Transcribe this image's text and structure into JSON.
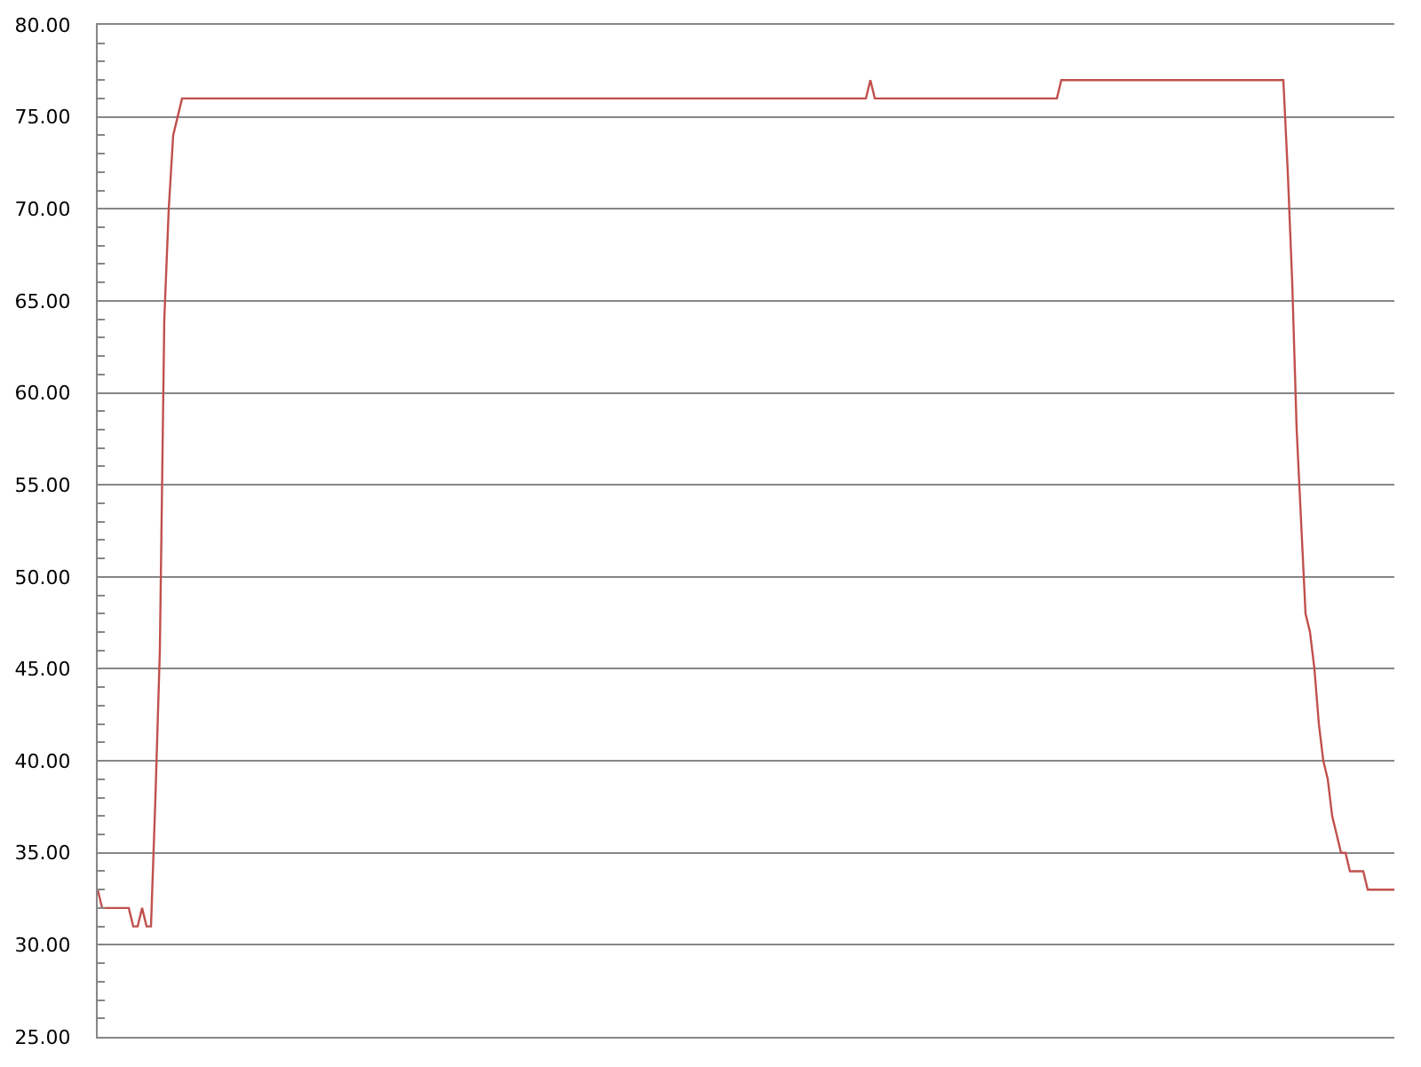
{
  "chart_data": {
    "type": "line",
    "categories": [
      null,
      null,
      null,
      null,
      null,
      null,
      null,
      null,
      null,
      null,
      null,
      null,
      null,
      null,
      null,
      null,
      null,
      null,
      null,
      null,
      null,
      null,
      null,
      null,
      null,
      null,
      null,
      null,
      null,
      null,
      null,
      null,
      null,
      null,
      null,
      null,
      null,
      null,
      null,
      null,
      null,
      null,
      null,
      null,
      null,
      null,
      null,
      null,
      null,
      null,
      null,
      null,
      null,
      null,
      null,
      null,
      null,
      null,
      null,
      null,
      null,
      null,
      null,
      null,
      null,
      null,
      null,
      null,
      null,
      null,
      null,
      null,
      null,
      null,
      null,
      null,
      null,
      null,
      null,
      null,
      null,
      null,
      null,
      null,
      null,
      null,
      null,
      null,
      null,
      null,
      null,
      null,
      null,
      null,
      null,
      null,
      null,
      null,
      null,
      null,
      null,
      null,
      null,
      null,
      null,
      null,
      null,
      null,
      null,
      null,
      null,
      null,
      null,
      null,
      null,
      null,
      null,
      null,
      null,
      null,
      null,
      null,
      null,
      null,
      null,
      null,
      null,
      null,
      null,
      null,
      null,
      null,
      null,
      null,
      null,
      null,
      null,
      null,
      null,
      null,
      null,
      null,
      null,
      null,
      null,
      null,
      null,
      null,
      null,
      null,
      null,
      null,
      null,
      null,
      null,
      null,
      null,
      null,
      null,
      null,
      null,
      null,
      null,
      null,
      null,
      null,
      null,
      null,
      null,
      null,
      null,
      null,
      null,
      null,
      null,
      null,
      null,
      null,
      null,
      null,
      null,
      null,
      null,
      null,
      null,
      null,
      null,
      null,
      null,
      null,
      null,
      null,
      null,
      null,
      null,
      null,
      null,
      null,
      null,
      null,
      null,
      null,
      null,
      null,
      null,
      null,
      null,
      null,
      null,
      null,
      null,
      null,
      null,
      null,
      null,
      null,
      null,
      null,
      null,
      null,
      null,
      null,
      null,
      null,
      null,
      null,
      null,
      null,
      null,
      null,
      null,
      null,
      null,
      null,
      null,
      null,
      null,
      null,
      null,
      null,
      null,
      null,
      null,
      null,
      null,
      null,
      null,
      null,
      null,
      null,
      null,
      null,
      null,
      null,
      null,
      null,
      null,
      null,
      null,
      null,
      null,
      null,
      null,
      null,
      null,
      null,
      null,
      null,
      null,
      null,
      null,
      null,
      null,
      null,
      null,
      null,
      null,
      null,
      null,
      null,
      null,
      null,
      null,
      null,
      null,
      null,
      null,
      null,
      null,
      null,
      null,
      null,
      null
    ],
    "series": [
      {
        "color": "#c0504d",
        "values": [
          33,
          32,
          32,
          32,
          32,
          32,
          32,
          32,
          31,
          31,
          32,
          31,
          31,
          38,
          46,
          64,
          70,
          74,
          75,
          76,
          76,
          76,
          76,
          76,
          76,
          76,
          76,
          76,
          76,
          76,
          76,
          76,
          76,
          76,
          76,
          76,
          76,
          76,
          76,
          76,
          76,
          76,
          76,
          76,
          76,
          76,
          76,
          76,
          76,
          76,
          76,
          76,
          76,
          76,
          76,
          76,
          76,
          76,
          76,
          76,
          76,
          76,
          76,
          76,
          76,
          76,
          76,
          76,
          76,
          76,
          76,
          76,
          76,
          76,
          76,
          76,
          76,
          76,
          76,
          76,
          76,
          76,
          76,
          76,
          76,
          76,
          76,
          76,
          76,
          76,
          76,
          76,
          76,
          76,
          76,
          76,
          76,
          76,
          76,
          76,
          76,
          76,
          76,
          76,
          76,
          76,
          76,
          76,
          76,
          76,
          76,
          76,
          76,
          76,
          76,
          76,
          76,
          76,
          76,
          76,
          76,
          76,
          76,
          76,
          76,
          76,
          76,
          76,
          76,
          76,
          76,
          76,
          76,
          76,
          76,
          76,
          76,
          76,
          76,
          76,
          76,
          76,
          76,
          76,
          76,
          76,
          76,
          76,
          76,
          76,
          76,
          76,
          76,
          76,
          76,
          76,
          76,
          76,
          76,
          76,
          76,
          76,
          76,
          76,
          76,
          76,
          76,
          76,
          76,
          76,
          76,
          76,
          76,
          76,
          77,
          76,
          76,
          76,
          76,
          76,
          76,
          76,
          76,
          76,
          76,
          76,
          76,
          76,
          76,
          76,
          76,
          76,
          76,
          76,
          76,
          76,
          76,
          76,
          76,
          76,
          76,
          76,
          76,
          76,
          76,
          76,
          76,
          76,
          76,
          76,
          76,
          76,
          76,
          76,
          76,
          76,
          76,
          77,
          77,
          77,
          77,
          77,
          77,
          77,
          77,
          77,
          77,
          77,
          77,
          77,
          77,
          77,
          77,
          77,
          77,
          77,
          77,
          77,
          77,
          77,
          77,
          77,
          77,
          77,
          77,
          77,
          77,
          77,
          77,
          77,
          77,
          77,
          77,
          77,
          77,
          77,
          77,
          77,
          77,
          77,
          77,
          77,
          77,
          77,
          77,
          77,
          77,
          77,
          72,
          66,
          58,
          53,
          48,
          47,
          45,
          42,
          40,
          39,
          37,
          36,
          35,
          35,
          34,
          34,
          34,
          34,
          33,
          33,
          33,
          33,
          33,
          33,
          33
        ]
      }
    ],
    "ylim": [
      25,
      80
    ],
    "yticks": [
      {
        "value": 25,
        "label": "25.00"
      },
      {
        "value": 26,
        "label": null
      },
      {
        "value": 27,
        "label": null
      },
      {
        "value": 28,
        "label": null
      },
      {
        "value": 29,
        "label": null
      },
      {
        "value": 30,
        "label": "30.00"
      },
      {
        "value": 31,
        "label": null
      },
      {
        "value": 32,
        "label": null
      },
      {
        "value": 33,
        "label": null
      },
      {
        "value": 34,
        "label": null
      },
      {
        "value": 35,
        "label": "35.00"
      },
      {
        "value": 36,
        "label": null
      },
      {
        "value": 37,
        "label": null
      },
      {
        "value": 38,
        "label": null
      },
      {
        "value": 39,
        "label": null
      },
      {
        "value": 40,
        "label": "40.00"
      },
      {
        "value": 41,
        "label": null
      },
      {
        "value": 42,
        "label": null
      },
      {
        "value": 43,
        "label": null
      },
      {
        "value": 44,
        "label": null
      },
      {
        "value": 45,
        "label": "45.00"
      },
      {
        "value": 46,
        "label": null
      },
      {
        "value": 47,
        "label": null
      },
      {
        "value": 48,
        "label": null
      },
      {
        "value": 49,
        "label": null
      },
      {
        "value": 50,
        "label": "50.00"
      },
      {
        "value": 51,
        "label": null
      },
      {
        "value": 52,
        "label": null
      },
      {
        "value": 53,
        "label": null
      },
      {
        "value": 54,
        "label": null
      },
      {
        "value": 55,
        "label": "55.00"
      },
      {
        "value": 56,
        "label": null
      },
      {
        "value": 57,
        "label": null
      },
      {
        "value": 58,
        "label": null
      },
      {
        "value": 59,
        "label": null
      },
      {
        "value": 60,
        "label": "60.00"
      },
      {
        "value": 61,
        "label": null
      },
      {
        "value": 62,
        "label": null
      },
      {
        "value": 63,
        "label": null
      },
      {
        "value": 64,
        "label": null
      },
      {
        "value": 65,
        "label": "65.00"
      },
      {
        "value": 66,
        "label": null
      },
      {
        "value": 67,
        "label": null
      },
      {
        "value": 68,
        "label": null
      },
      {
        "value": 69,
        "label": null
      },
      {
        "value": 70,
        "label": "70.00"
      },
      {
        "value": 71,
        "label": null
      },
      {
        "value": 72,
        "label": null
      },
      {
        "value": 73,
        "label": null
      },
      {
        "value": 74,
        "label": null
      },
      {
        "value": 75,
        "label": "75.00"
      },
      {
        "value": 76,
        "label": null
      },
      {
        "value": 77,
        "label": null
      },
      {
        "value": 78,
        "label": null
      },
      {
        "value": 79,
        "label": null
      },
      {
        "value": 80,
        "label": "80.00"
      }
    ],
    "grid": "y",
    "tick_labels": "y"
  }
}
